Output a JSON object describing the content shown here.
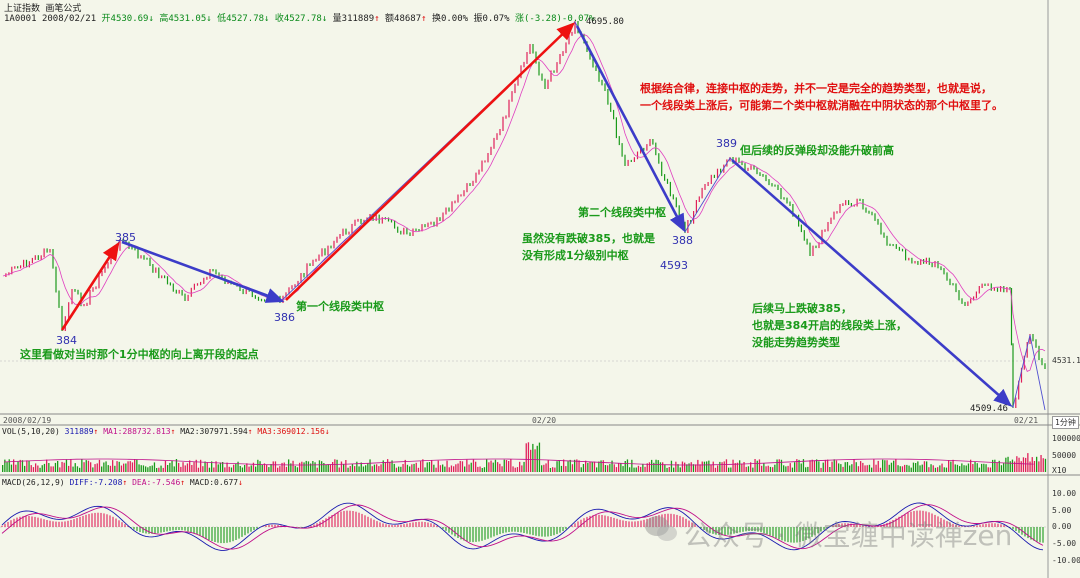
{
  "header": {
    "title": "上证指数 画笔公式",
    "code": "1A0001",
    "date": "2008/02/21",
    "open": "开4530.69",
    "high": "高4531.05",
    "low": "低4527.78",
    "close": "收4527.78",
    "volume": "量311889",
    "amount": "额48687",
    "turnover": "换0.00%",
    "amplitude": "振0.07%",
    "change": "涨(-3.28)-0.07%"
  },
  "chart_data": {
    "type": "line",
    "title": "上证指数 画笔公式",
    "period": "1分钟",
    "key_points": [
      {
        "label": "384",
        "price": null
      },
      {
        "label": "385",
        "price": null
      },
      {
        "label": "386",
        "price": null
      },
      {
        "label": "",
        "price": 4695.8
      },
      {
        "label": "388",
        "price": 4593
      },
      {
        "label": "389",
        "price": null
      },
      {
        "label": "",
        "price": 4509.46
      }
    ],
    "price_tick_right": "4531.1",
    "dates": [
      "2008/02/19",
      "02/20",
      "02/21"
    ],
    "volume_panel": {
      "header": "VOL(5,10,20)",
      "vol": "311889",
      "ma1": "MA1:288732.813",
      "ma2": "MA2:307971.594",
      "ma3": "MA3:369012.156",
      "ticks": [
        "100000",
        "50000",
        "X10"
      ]
    },
    "macd_panel": {
      "header": "MACD(26,12,9)",
      "diff": "DIFF:-7.208",
      "dea": "DEA:-7.546",
      "macd": "MACD:0.677",
      "ticks": [
        "10.00",
        "5.00",
        "0.00",
        "-5.00",
        "-10.00"
      ]
    }
  },
  "annotations": {
    "note_top_red": [
      "根据结合律，连接中枢的走势，并不一定是完全的趋势类型，也就是说，",
      "一个线段类上涨后，可能第二个类中枢就消融在中阴状态的那个中枢里了。"
    ],
    "note_389": "但后续的反弹段却没能升破前高",
    "note_second": "第二个线段类中枢",
    "note_385": [
      "虽然没有跌破385，也就是",
      "没有形成1分级别中枢"
    ],
    "note_first": "第一个线段类中枢",
    "note_bottom": "这里看做对当时那个1分中枢的向上离开段的起点",
    "note_right": [
      "后续马上跌破385，",
      "也就是384开启的线段类上涨，",
      "没能走势趋势类型"
    ],
    "peak_label": "4695.80",
    "low_label": "4509.46",
    "label_4593": "4593"
  },
  "watermark": "公众号 · 微宝缠中读禅zen",
  "colors": {
    "red_arrow": "#ee1111",
    "blue_arrow": "#3c3cc8",
    "up": "#e0205a",
    "down": "#1a9a1a",
    "bg": "#f4f6ea"
  }
}
